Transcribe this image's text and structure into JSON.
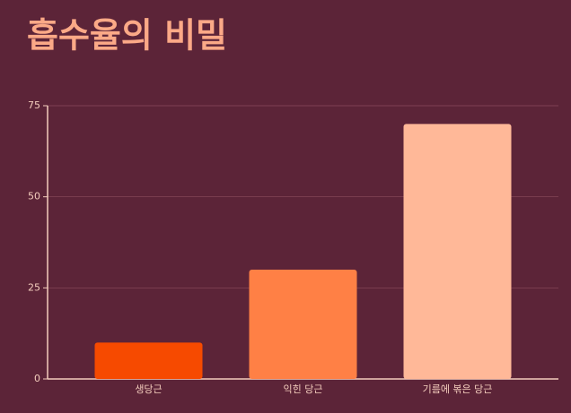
{
  "chart_data": {
    "type": "bar",
    "title": "흡수율의 비밀",
    "categories": [
      "생당근",
      "익힌 당근",
      "기름에 볶은 당근"
    ],
    "values": [
      10,
      30,
      70
    ],
    "colors": [
      "#f64a00",
      "#ff8045",
      "#ffb898"
    ],
    "ylim": [
      0,
      75
    ],
    "yticks": [
      0,
      25,
      50,
      75
    ],
    "grid": true
  }
}
